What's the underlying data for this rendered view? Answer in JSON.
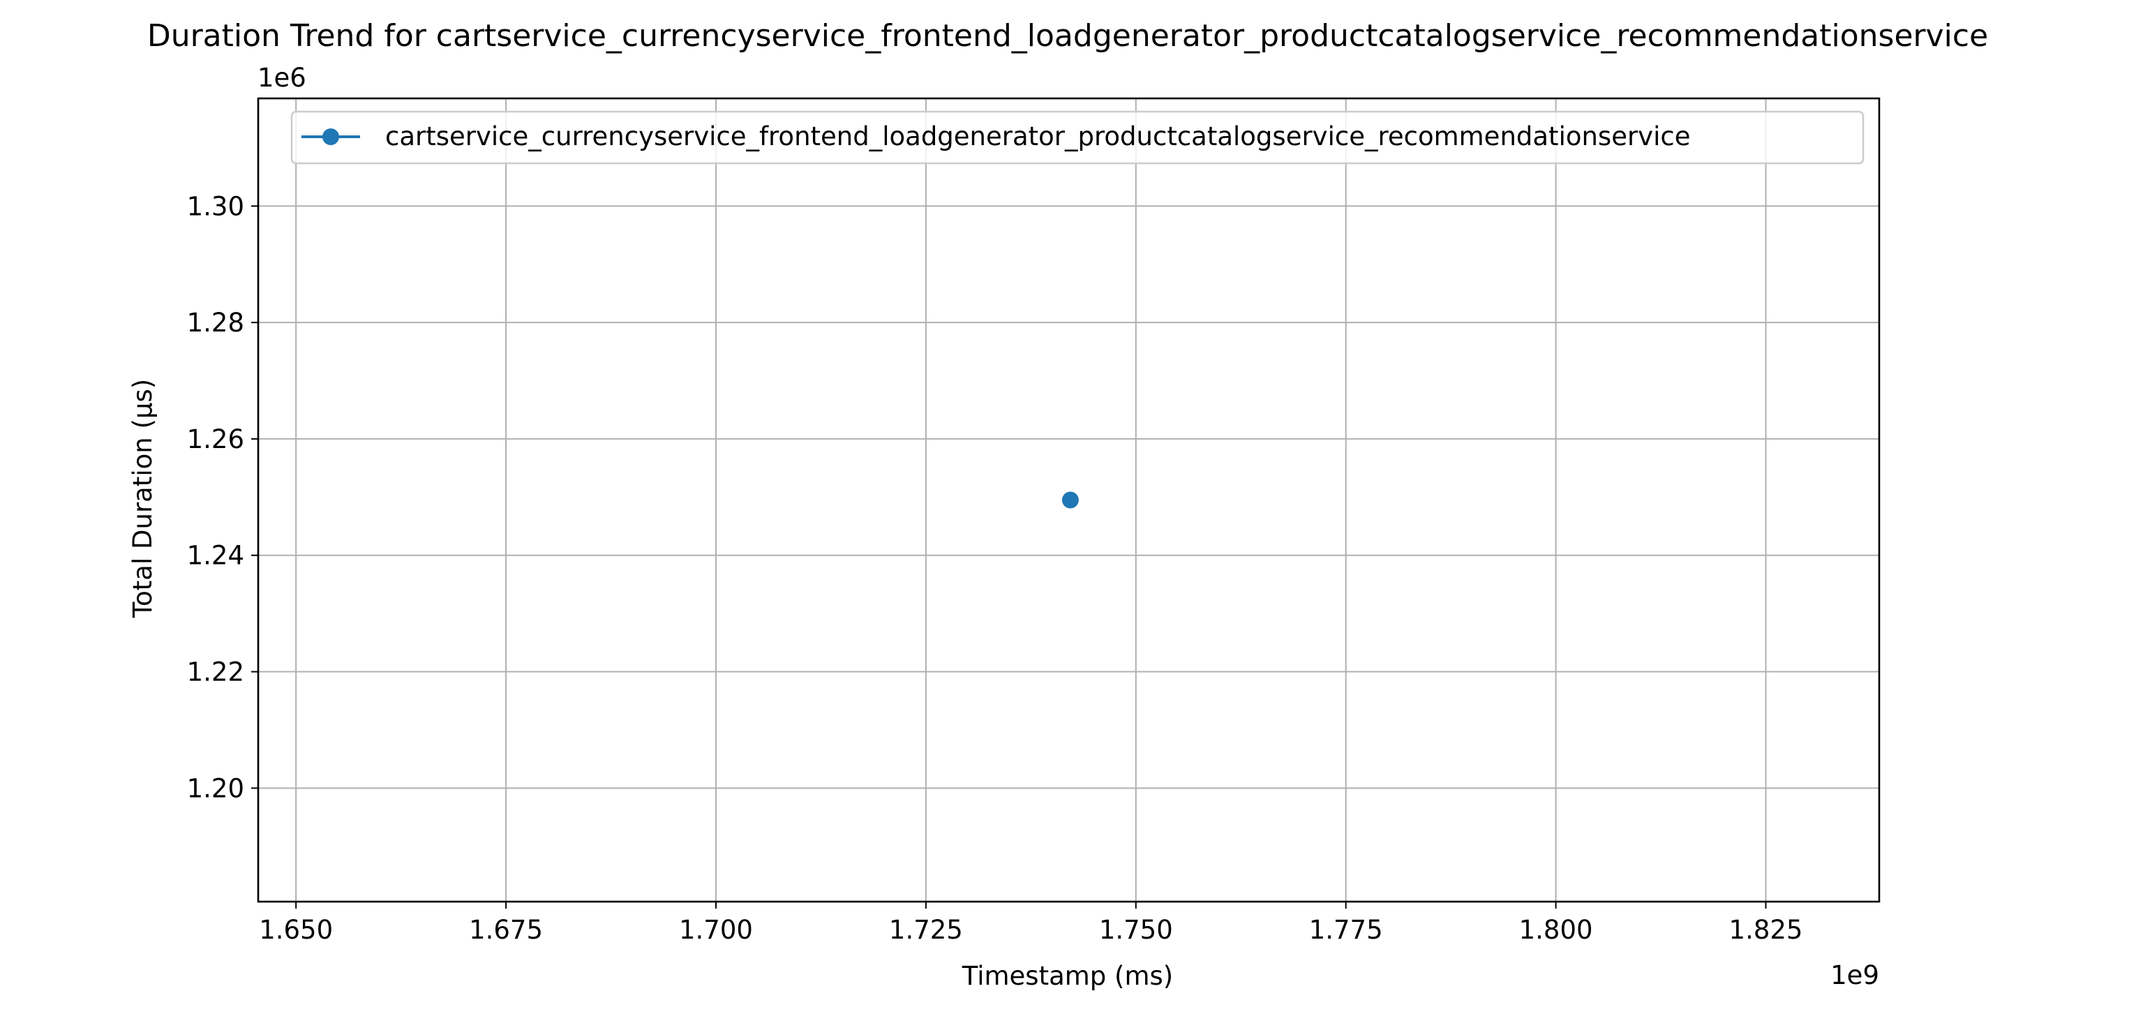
{
  "chart_data": {
    "type": "line",
    "title": "Duration Trend for cartservice_currencyservice_frontend_loadgenerator_productcatalogservice_recommendationservice",
    "xlabel": "Timestamp (ms)",
    "ylabel": "Total Duration (µs)",
    "x_offset_label": "1e9",
    "y_offset_label": "1e6",
    "xlim": [
      1.6455,
      1.8385
    ],
    "ylim": [
      1.1805,
      1.3185
    ],
    "x_ticks": [
      1.65,
      1.675,
      1.7,
      1.725,
      1.75,
      1.775,
      1.8,
      1.825
    ],
    "x_tick_labels": [
      "1.650",
      "1.675",
      "1.700",
      "1.725",
      "1.750",
      "1.775",
      "1.800",
      "1.825"
    ],
    "y_ticks": [
      1.2,
      1.22,
      1.24,
      1.26,
      1.28,
      1.3
    ],
    "y_tick_labels": [
      "1.20",
      "1.22",
      "1.24",
      "1.26",
      "1.28",
      "1.30"
    ],
    "grid": true,
    "legend_position": "top-left",
    "series": [
      {
        "name": "cartservice_currencyservice_frontend_loadgenerator_productcatalogservice_recommendationservice",
        "color": "#1f77b4",
        "marker": "circle",
        "x": [
          1.7422
        ],
        "y": [
          1.2495
        ]
      }
    ]
  }
}
